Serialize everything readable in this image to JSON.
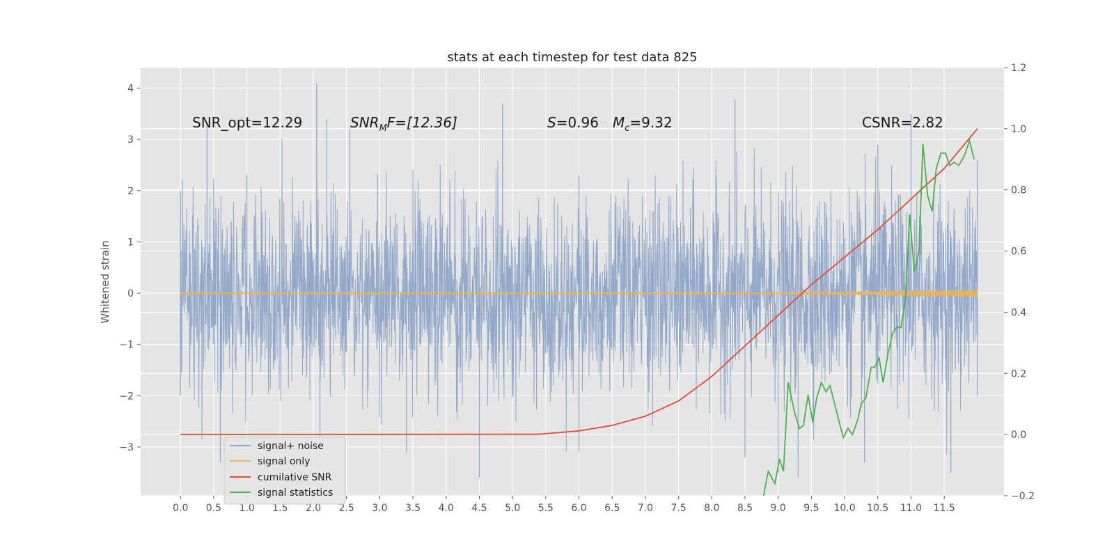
{
  "chart_data": {
    "type": "line",
    "title": "stats at each timestep for test data 825",
    "xlabel": "",
    "ylabel": "Whitened strain",
    "xlim": [
      -0.6,
      12.4
    ],
    "ylim": [
      -3.95,
      4.4
    ],
    "y2lim": [
      -0.2,
      1.2
    ],
    "x_ticks": [
      0.0,
      0.5,
      1.0,
      1.5,
      2.0,
      2.5,
      3.0,
      3.5,
      4.0,
      4.5,
      5.0,
      5.5,
      6.0,
      6.5,
      7.0,
      7.5,
      8.0,
      8.5,
      9.0,
      9.5,
      10.0,
      10.5,
      11.0,
      11.5
    ],
    "x_tick_labels": [
      "0.0",
      "0.5",
      "1.0",
      "1.5",
      "2.0",
      "2.5",
      "3.0",
      "3.5",
      "4.0",
      "4.5",
      "5.0",
      "5.5",
      "6.0",
      "6.5",
      "7.0",
      "7.5",
      "8.0",
      "8.5",
      "9.0",
      "9.5",
      "10.0",
      "10.5",
      "11.0",
      "11.5"
    ],
    "y_ticks": [
      -3,
      -2,
      -1,
      0,
      1,
      2,
      3,
      4
    ],
    "y_tick_labels": [
      "−3",
      "−2",
      "−1",
      "0",
      "1",
      "2",
      "3",
      "4"
    ],
    "y2_ticks": [
      -0.2,
      0.0,
      0.2,
      0.4,
      0.6,
      0.8,
      1.0,
      1.2
    ],
    "y2_tick_labels": [
      "−0.2",
      "0.0",
      "0.2",
      "0.4",
      "0.6",
      "0.8",
      "1.0",
      "1.2"
    ],
    "grid": true,
    "legend_position": "lower-left",
    "annotations": {
      "snr_opt": "SNR_opt=12.29",
      "snr_mf_main": "SNR",
      "snr_mf_sub": "M",
      "snr_mf_rest": "F=[12.36]",
      "s_label": "S",
      "s_value": "=0.96",
      "mc_label": "M",
      "mc_sub": "c",
      "mc_value": "=9.32",
      "csnr": "CSNR=2.82"
    },
    "series": [
      {
        "name": "signal+ noise",
        "axis": "left",
        "color": "#8fa5c8",
        "x_range": [
          0.0,
          12.0
        ],
        "description_of_values": "dense noise band roughly between -2.5 and 2.5",
        "envelope_upper": [
          [
            0.0,
            2.0
          ],
          [
            0.4,
            3.3
          ],
          [
            1.0,
            2.3
          ],
          [
            2.05,
            4.08
          ],
          [
            2.2,
            3.4
          ],
          [
            2.55,
            3.2
          ],
          [
            4.85,
            3.7
          ],
          [
            6.0,
            2.3
          ],
          [
            8.35,
            3.77
          ],
          [
            10.5,
            2.9
          ],
          [
            11.0,
            3.5
          ],
          [
            12.0,
            2.6
          ]
        ],
        "envelope_lower": [
          [
            0.0,
            -2.0
          ],
          [
            0.6,
            -3.3
          ],
          [
            2.1,
            -3.0
          ],
          [
            3.4,
            -3.1
          ],
          [
            4.5,
            -3.6
          ],
          [
            6.0,
            -3.1
          ],
          [
            8.5,
            -3.2
          ],
          [
            9.0,
            -3.5
          ],
          [
            9.3,
            -3.6
          ],
          [
            10.3,
            -3.3
          ],
          [
            11.6,
            -3.5
          ],
          [
            12.0,
            -2.0
          ]
        ]
      },
      {
        "name": "signal only",
        "axis": "left",
        "color": "#e8b45a",
        "x": [
          0.0,
          9.0,
          10.0,
          11.0,
          12.0
        ],
        "y_amplitude": [
          0.01,
          0.01,
          0.03,
          0.06,
          0.08
        ]
      },
      {
        "name": "cumilative SNR",
        "axis": "right",
        "color": "#e24a33",
        "x": [
          0.0,
          5.4,
          6.0,
          6.5,
          7.0,
          7.5,
          8.0,
          8.5,
          9.0,
          9.5,
          10.0,
          10.5,
          11.0,
          11.5,
          12.0
        ],
        "y": [
          0.0,
          0.001,
          0.012,
          0.03,
          0.06,
          0.11,
          0.19,
          0.29,
          0.39,
          0.49,
          0.58,
          0.67,
          0.77,
          0.87,
          1.0
        ]
      },
      {
        "name": "signal statistics",
        "axis": "right",
        "color": "#4caf50",
        "x": [
          8.78,
          8.85,
          8.95,
          9.02,
          9.08,
          9.15,
          9.25,
          9.32,
          9.38,
          9.45,
          9.52,
          9.58,
          9.65,
          9.72,
          9.78,
          9.85,
          9.92,
          9.98,
          10.05,
          10.12,
          10.2,
          10.25,
          10.32,
          10.4,
          10.45,
          10.52,
          10.58,
          10.65,
          10.72,
          10.78,
          10.85,
          10.92,
          10.98,
          11.05,
          11.12,
          11.18,
          11.25,
          11.32,
          11.38,
          11.45,
          11.52,
          11.58,
          11.65,
          11.72,
          11.8,
          11.88,
          11.95
        ],
        "y": [
          -0.2,
          -0.12,
          -0.16,
          -0.08,
          -0.12,
          0.17,
          0.07,
          0.02,
          0.03,
          0.13,
          0.04,
          0.12,
          0.17,
          0.14,
          0.16,
          0.1,
          0.04,
          -0.01,
          0.02,
          0.0,
          0.05,
          0.1,
          0.12,
          0.22,
          0.22,
          0.25,
          0.17,
          0.26,
          0.33,
          0.35,
          0.35,
          0.45,
          0.72,
          0.53,
          0.6,
          0.95,
          0.78,
          0.73,
          0.87,
          0.92,
          0.92,
          0.88,
          0.89,
          0.88,
          0.91,
          0.96,
          0.9
        ]
      }
    ]
  }
}
